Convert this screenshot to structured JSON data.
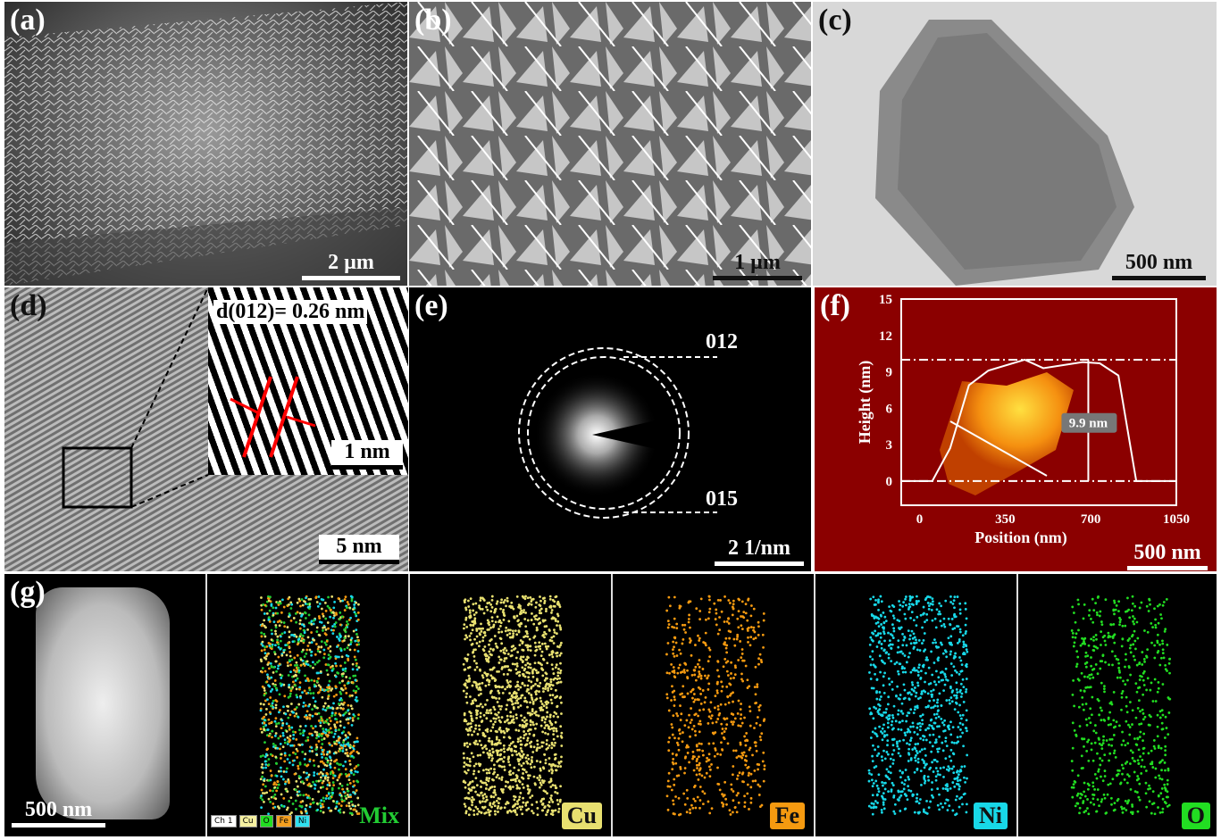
{
  "panels": {
    "a": {
      "label": "(a)",
      "scale": "2 µm"
    },
    "b": {
      "label": "(b)",
      "scale": "1 µm"
    },
    "c": {
      "label": "(c)",
      "scale": "500 nm"
    },
    "d": {
      "label": "(d)",
      "scale": "5 nm",
      "inset_text": "d(012)= 0.26 nm",
      "inset_scale": "1 nm"
    },
    "e": {
      "label": "(e)",
      "scale": "2 1/nm",
      "ring1": "012",
      "ring2": "015"
    },
    "f": {
      "label": "(f)",
      "scale": "500 nm"
    },
    "g": {
      "label": "(g)",
      "scale": "500 nm",
      "maps": [
        {
          "name": "Mix",
          "color": "#22cc33"
        },
        {
          "name": "Cu",
          "color": "#e8e070"
        },
        {
          "name": "Fe",
          "color": "#f59a10"
        },
        {
          "name": "Ni",
          "color": "#18d8e8"
        },
        {
          "name": "O",
          "color": "#22dd22"
        }
      ],
      "legend": [
        {
          "t": "Ch 1",
          "c": "#ffffff"
        },
        {
          "t": "Cu",
          "c": "#f5f0a0"
        },
        {
          "t": "O",
          "c": "#22dd22"
        },
        {
          "t": "Fe",
          "c": "#f5a020"
        },
        {
          "t": "Ni",
          "c": "#30e0f0"
        }
      ]
    }
  },
  "chart_data": {
    "type": "line",
    "xlabel": "Position (nm)",
    "ylabel": "Height (nm)",
    "xlim": [
      -75,
      1050
    ],
    "ylim": [
      -2,
      15
    ],
    "xticks": [
      "0",
      "350",
      "700",
      "1050"
    ],
    "yticks": [
      "0",
      "3",
      "6",
      "9",
      "12",
      "15"
    ],
    "x": [
      -75,
      52,
      125,
      202,
      281,
      430,
      506,
      667,
      737,
      813,
      886,
      1050
    ],
    "y": [
      0,
      0,
      2.7,
      7.9,
      9.1,
      10.0,
      9.3,
      9.8,
      9.7,
      8.7,
      0,
      0
    ],
    "reference_lines": [
      0,
      10
    ],
    "annotation": "9.9 nm",
    "background": "#8b0000"
  }
}
